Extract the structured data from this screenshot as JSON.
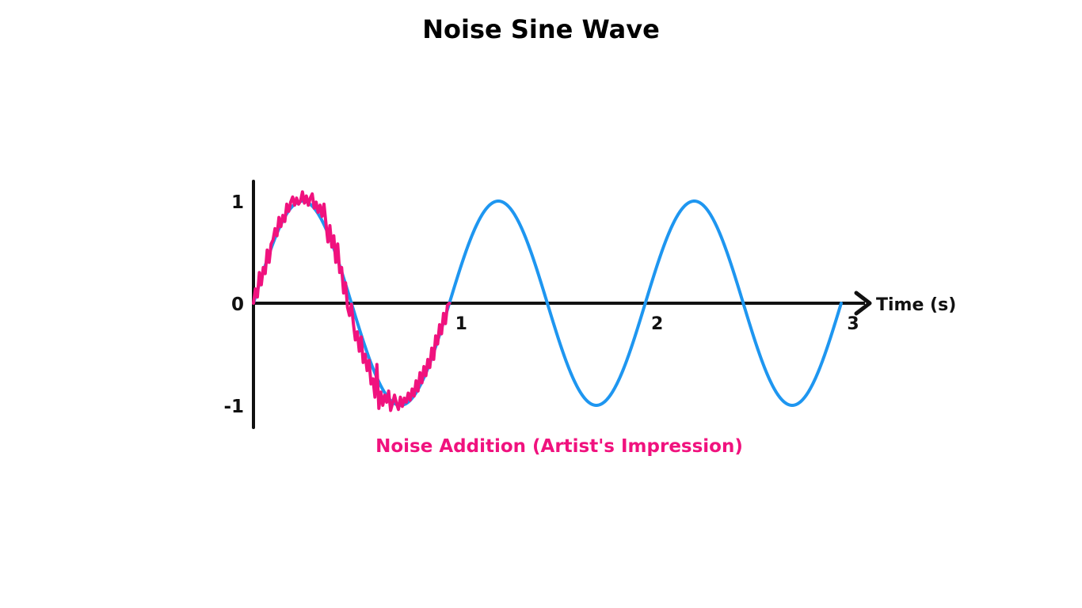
{
  "chart_data": {
    "type": "line",
    "title": "Noise Sine Wave",
    "xlabel": "Time (s)",
    "ylabel": "",
    "xlim": [
      0,
      3
    ],
    "ylim": [
      -1,
      1
    ],
    "x_ticks": [
      "1",
      "2",
      "3"
    ],
    "y_ticks": [
      "1",
      "0",
      "-1"
    ],
    "annotation": "Noise Addition (Artist's Impression)",
    "series": [
      {
        "color": "#1e96f0",
        "function": "sin(2*pi*t)",
        "x": [
          0,
          0.25,
          0.5,
          0.75,
          1,
          1.25,
          1.5,
          1.75,
          2,
          2.25,
          2.5,
          2.75,
          3
        ],
        "y": [
          0,
          1,
          0,
          -1,
          0,
          1,
          0,
          -1,
          0,
          1,
          0,
          -1,
          0
        ]
      },
      {
        "color": "#f0127e",
        "x": [
          0,
          0.01,
          0.02,
          0.03,
          0.04,
          0.05,
          0.06,
          0.07,
          0.08,
          0.09,
          0.1,
          0.11,
          0.12,
          0.13,
          0.14,
          0.15,
          0.16,
          0.17,
          0.18,
          0.19,
          0.2,
          0.21,
          0.22,
          0.23,
          0.24,
          0.25,
          0.26,
          0.27,
          0.28,
          0.29,
          0.3,
          0.31,
          0.32,
          0.33,
          0.34,
          0.35,
          0.36,
          0.37,
          0.38,
          0.39,
          0.4,
          0.41,
          0.42,
          0.43,
          0.44,
          0.45,
          0.46,
          0.47,
          0.48,
          0.49,
          0.5,
          0.51,
          0.52,
          0.53,
          0.54,
          0.55,
          0.56,
          0.57,
          0.58,
          0.59,
          0.6,
          0.61,
          0.62,
          0.63,
          0.64,
          0.65,
          0.66,
          0.67,
          0.68,
          0.69,
          0.7,
          0.71,
          0.72,
          0.73,
          0.74,
          0.75,
          0.76,
          0.77,
          0.78,
          0.79,
          0.8,
          0.81,
          0.82,
          0.83,
          0.84,
          0.85,
          0.86,
          0.87,
          0.88,
          0.89,
          0.9,
          0.91,
          0.92,
          0.93,
          0.94,
          0.95,
          0.96,
          0.97,
          0.98,
          0.99,
          1.0
        ],
        "y": [
          0.0,
          0.14,
          0.06,
          0.3,
          0.18,
          0.35,
          0.29,
          0.52,
          0.4,
          0.58,
          0.62,
          0.73,
          0.66,
          0.84,
          0.75,
          0.86,
          0.8,
          0.97,
          0.9,
          0.99,
          1.04,
          0.96,
          1.03,
          0.97,
          1.0,
          1.09,
          0.98,
          1.05,
          0.96,
          1.03,
          1.07,
          0.93,
          0.99,
          0.89,
          0.96,
          0.85,
          0.97,
          0.78,
          0.6,
          0.76,
          0.55,
          0.66,
          0.4,
          0.58,
          0.3,
          0.35,
          0.1,
          0.2,
          -0.04,
          -0.12,
          -0.01,
          -0.2,
          -0.36,
          -0.28,
          -0.47,
          -0.33,
          -0.58,
          -0.5,
          -0.66,
          -0.56,
          -0.79,
          -0.74,
          -0.92,
          -0.6,
          -1.03,
          -0.87,
          -1.0,
          -0.9,
          -0.97,
          -0.86,
          -1.05,
          -0.98,
          -0.9,
          -0.98,
          -1.04,
          -0.92,
          -1.01,
          -0.93,
          -0.97,
          -0.88,
          -0.95,
          -0.84,
          -0.91,
          -0.76,
          -0.86,
          -0.68,
          -0.78,
          -0.62,
          -0.71,
          -0.55,
          -0.63,
          -0.44,
          -0.55,
          -0.32,
          -0.4,
          -0.21,
          -0.3,
          -0.1,
          -0.2,
          -0.02,
          0.0
        ]
      }
    ]
  }
}
